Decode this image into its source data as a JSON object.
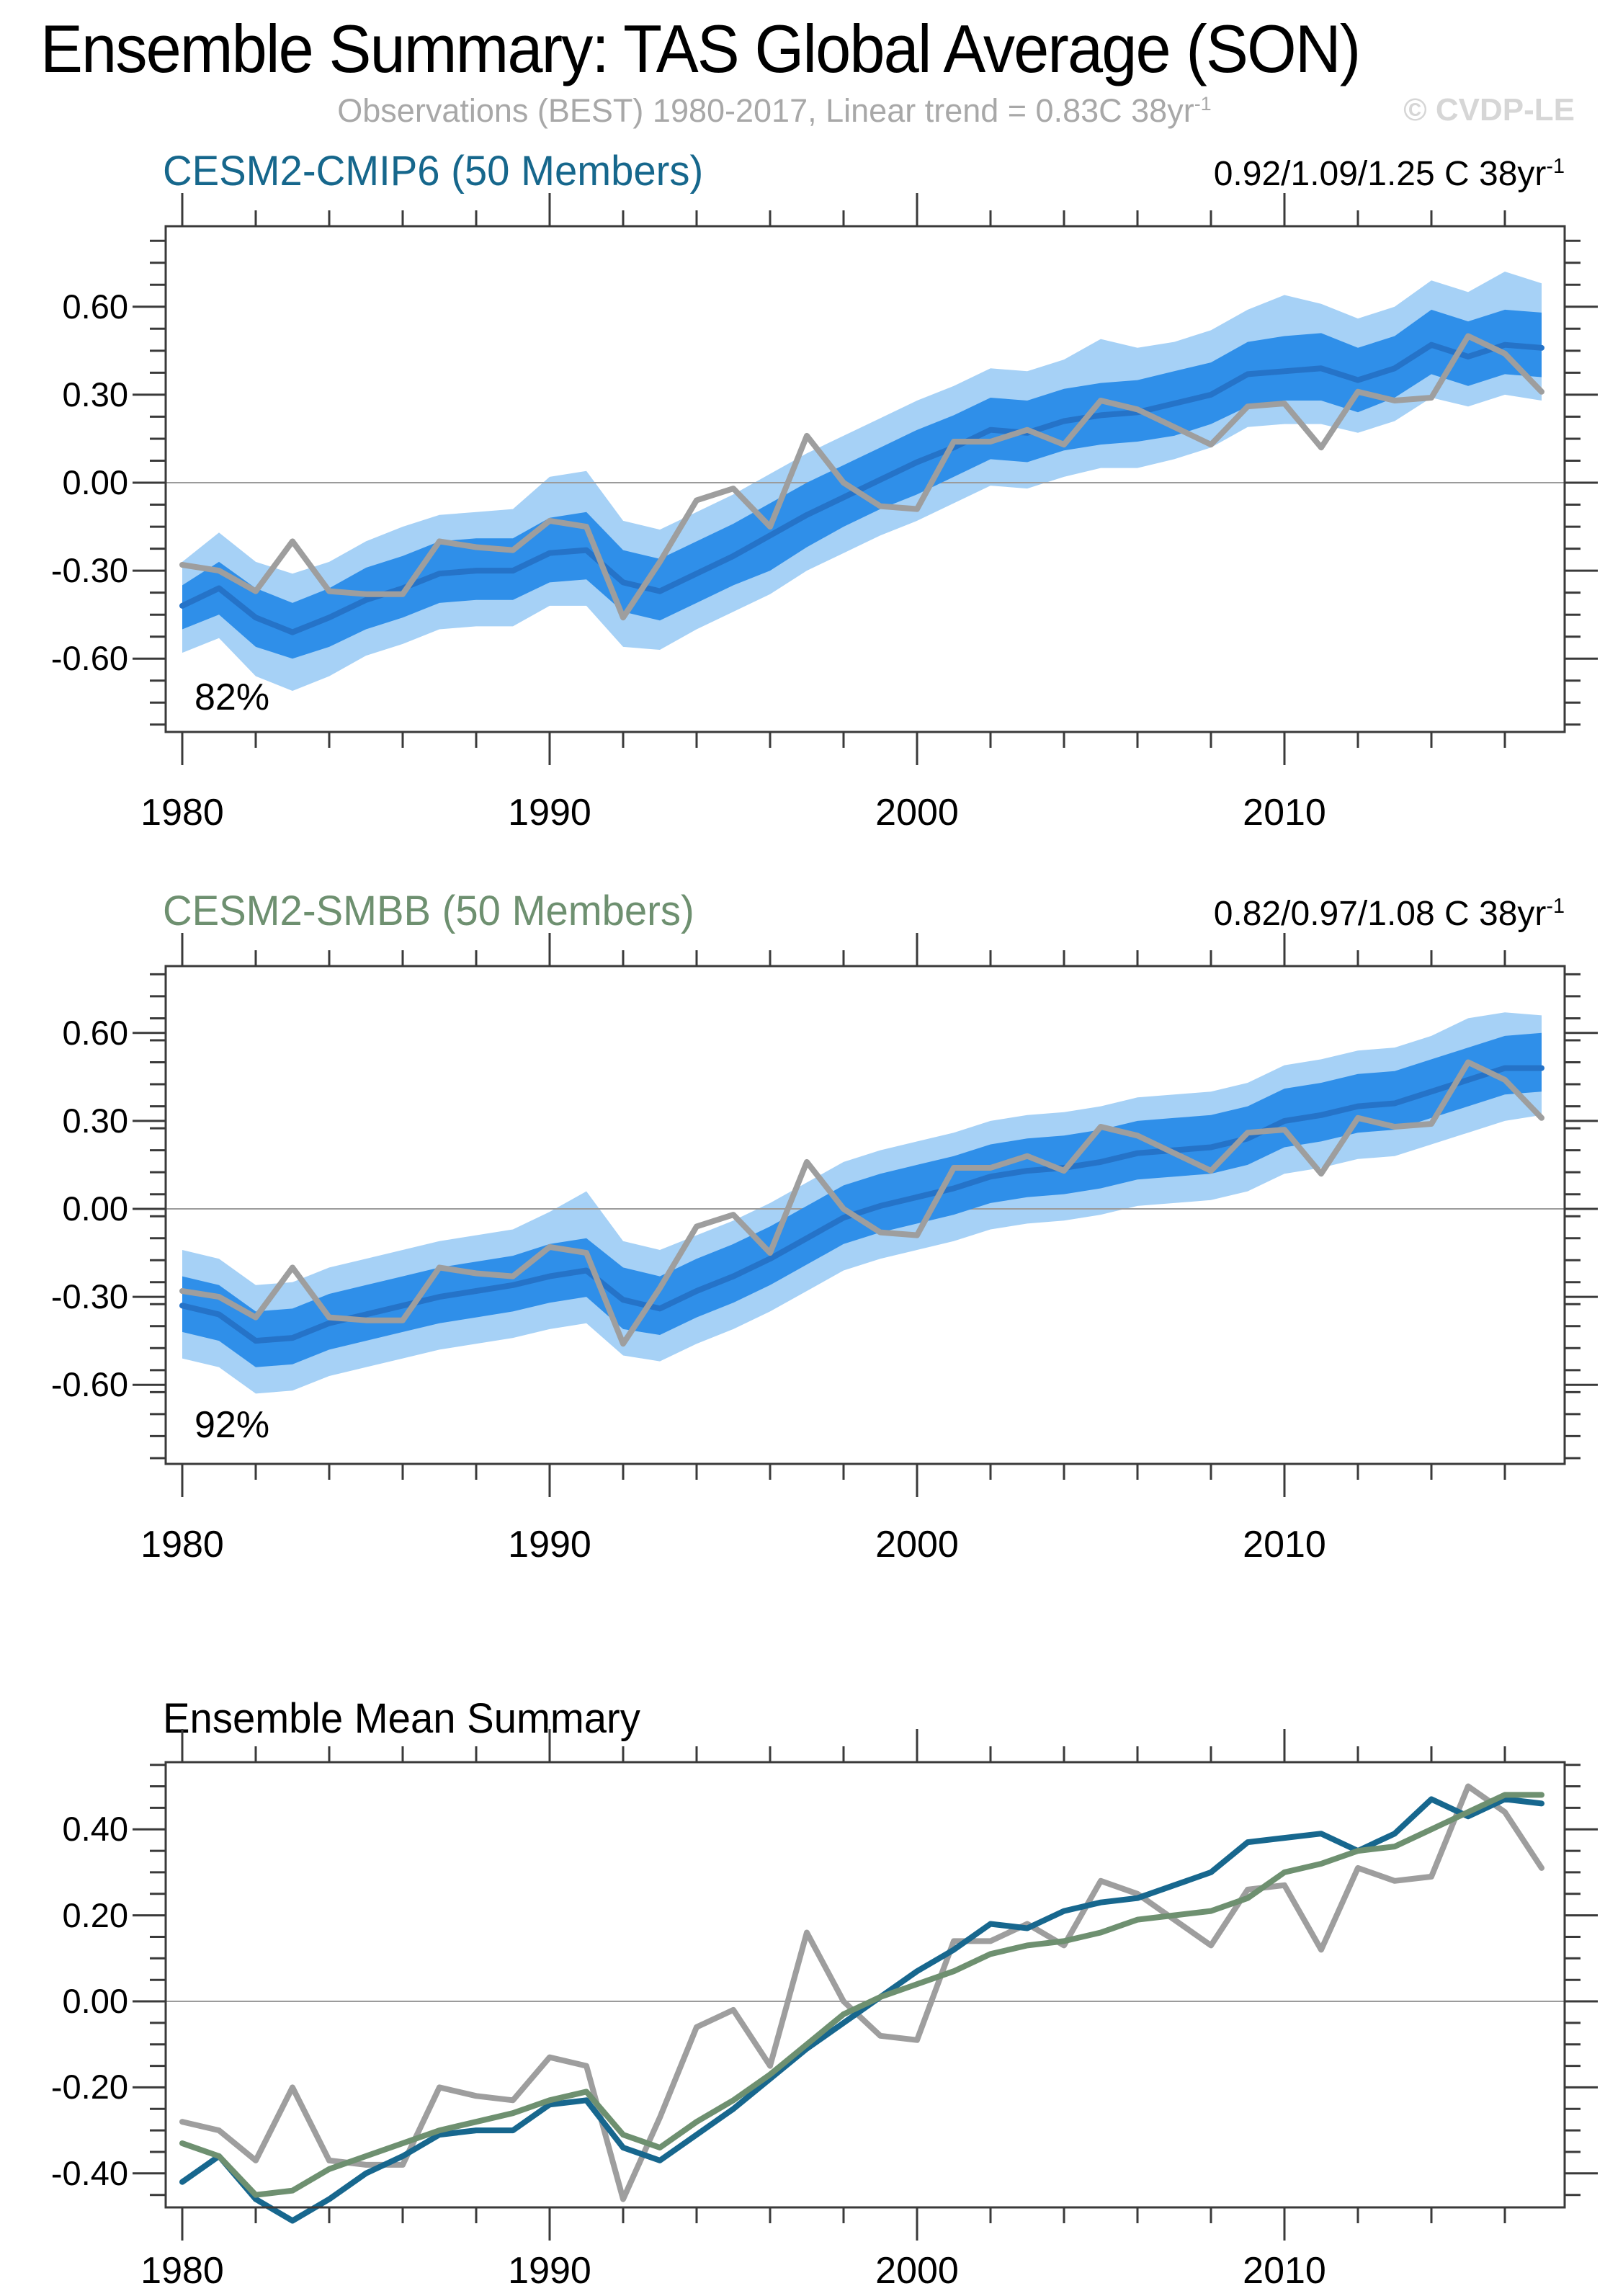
{
  "header": {
    "title": "Ensemble Summary: TAS Global Average (SON)",
    "subtitle": "Observations (BEST) 1980-2017, Linear trend = 0.83C 38yr",
    "subtitle_sup": "-1",
    "watermark": "© CVDP-LE"
  },
  "panels": [
    {
      "key": "cmip6",
      "title": "CESM2-CMIP6 (50 Members)",
      "trend": "0.92/1.09/1.25 C 38yr",
      "trend_sup": "-1",
      "coverage_label": "82%",
      "y_tick_labels": [
        "0.60",
        "0.30",
        "0.00",
        "-0.30",
        "-0.60"
      ],
      "x_tick_labels": [
        "1980",
        "1990",
        "2000",
        "2010"
      ]
    },
    {
      "key": "smbb",
      "title": "CESM2-SMBB (50 Members)",
      "trend": "0.82/0.97/1.08 C 38yr",
      "trend_sup": "-1",
      "coverage_label": "92%",
      "y_tick_labels": [
        "0.60",
        "0.30",
        "0.00",
        "-0.30",
        "-0.60"
      ],
      "x_tick_labels": [
        "1980",
        "1990",
        "2000",
        "2010"
      ]
    },
    {
      "key": "summary",
      "title": "Ensemble Mean Summary",
      "y_tick_labels": [
        "0.40",
        "0.20",
        "0.00",
        "-0.20",
        "-0.40"
      ],
      "x_tick_labels": [
        "1980",
        "1990",
        "2000",
        "2010"
      ]
    }
  ],
  "colors": {
    "band_outer": "#A6D1F6",
    "band_inner": "#2F8FE9",
    "ensemble_mean_line": "#2573C8",
    "observations_line": "#9E9E9E",
    "cmip6_line": "#17678E",
    "smbb_line": "#6E9070",
    "cmip6_title": "#16678C",
    "smbb_title": "#6E9070",
    "subtitle": "#A8A8A8",
    "watermark": "#D6D6D6",
    "axis": "#3A3A3A",
    "gridline": "#9B9B9B"
  },
  "chart_data": [
    {
      "type": "area",
      "title": "CESM2-CMIP6 (50 Members)",
      "xlabel": "",
      "ylabel": "",
      "x": [
        1980,
        1981,
        1982,
        1983,
        1984,
        1985,
        1986,
        1987,
        1988,
        1989,
        1990,
        1991,
        1992,
        1993,
        1994,
        1995,
        1996,
        1997,
        1998,
        1999,
        2000,
        2001,
        2002,
        2003,
        2004,
        2005,
        2006,
        2007,
        2008,
        2009,
        2010,
        2011,
        2012,
        2013,
        2014,
        2015,
        2016,
        2017
      ],
      "xlim": [
        1979.55,
        2017.7
      ],
      "ylim": [
        -0.85,
        0.875
      ],
      "grid_y": [
        0.0
      ],
      "series": [
        {
          "name": "ensemble_min",
          "values": [
            -0.58,
            -0.53,
            -0.66,
            -0.71,
            -0.66,
            -0.59,
            -0.55,
            -0.5,
            -0.49,
            -0.49,
            -0.42,
            -0.42,
            -0.56,
            -0.57,
            -0.5,
            -0.44,
            -0.38,
            -0.3,
            -0.24,
            -0.18,
            -0.13,
            -0.07,
            -0.01,
            -0.02,
            0.02,
            0.05,
            0.05,
            0.08,
            0.12,
            0.19,
            0.2,
            0.2,
            0.17,
            0.21,
            0.29,
            0.26,
            0.3,
            0.28
          ]
        },
        {
          "name": "ensemble_max",
          "values": [
            -0.27,
            -0.17,
            -0.27,
            -0.31,
            -0.27,
            -0.2,
            -0.15,
            -0.11,
            -0.1,
            -0.09,
            0.02,
            0.04,
            -0.13,
            -0.16,
            -0.1,
            -0.04,
            0.03,
            0.1,
            0.16,
            0.22,
            0.28,
            0.33,
            0.39,
            0.38,
            0.42,
            0.49,
            0.46,
            0.48,
            0.52,
            0.59,
            0.64,
            0.61,
            0.56,
            0.6,
            0.69,
            0.65,
            0.72,
            0.68
          ]
        },
        {
          "name": "ensemble_p25",
          "values": [
            -0.5,
            -0.45,
            -0.56,
            -0.6,
            -0.56,
            -0.5,
            -0.46,
            -0.41,
            -0.4,
            -0.4,
            -0.34,
            -0.33,
            -0.44,
            -0.47,
            -0.41,
            -0.35,
            -0.3,
            -0.22,
            -0.15,
            -0.09,
            -0.04,
            0.02,
            0.08,
            0.07,
            0.11,
            0.13,
            0.14,
            0.16,
            0.2,
            0.26,
            0.28,
            0.28,
            0.24,
            0.29,
            0.37,
            0.33,
            0.37,
            0.36
          ]
        },
        {
          "name": "ensemble_p75",
          "values": [
            -0.35,
            -0.27,
            -0.36,
            -0.41,
            -0.36,
            -0.29,
            -0.25,
            -0.2,
            -0.19,
            -0.19,
            -0.12,
            -0.1,
            -0.23,
            -0.26,
            -0.2,
            -0.14,
            -0.07,
            0.0,
            0.06,
            0.12,
            0.18,
            0.23,
            0.29,
            0.28,
            0.32,
            0.34,
            0.35,
            0.38,
            0.41,
            0.48,
            0.5,
            0.51,
            0.46,
            0.5,
            0.59,
            0.55,
            0.59,
            0.58
          ]
        },
        {
          "name": "ensemble_mean",
          "values": [
            -0.42,
            -0.36,
            -0.46,
            -0.51,
            -0.46,
            -0.4,
            -0.36,
            -0.31,
            -0.3,
            -0.3,
            -0.24,
            -0.23,
            -0.34,
            -0.37,
            -0.31,
            -0.25,
            -0.18,
            -0.11,
            -0.05,
            0.01,
            0.07,
            0.12,
            0.18,
            0.17,
            0.21,
            0.23,
            0.24,
            0.27,
            0.3,
            0.37,
            0.38,
            0.39,
            0.35,
            0.39,
            0.47,
            0.43,
            0.47,
            0.46
          ]
        },
        {
          "name": "observations_best",
          "values": [
            -0.28,
            -0.3,
            -0.37,
            -0.2,
            -0.37,
            -0.38,
            -0.38,
            -0.2,
            -0.22,
            -0.23,
            -0.13,
            -0.15,
            -0.46,
            -0.27,
            -0.06,
            -0.02,
            -0.15,
            0.16,
            0.0,
            -0.08,
            -0.09,
            0.14,
            0.14,
            0.18,
            0.13,
            0.28,
            0.25,
            0.19,
            0.13,
            0.26,
            0.27,
            0.12,
            0.31,
            0.28,
            0.29,
            0.5,
            0.44,
            0.31
          ]
        }
      ],
      "annotations": [
        "82%"
      ],
      "legend": "none"
    },
    {
      "type": "area",
      "title": "CESM2-SMBB (50 Members)",
      "xlabel": "",
      "ylabel": "",
      "x": [
        1980,
        1981,
        1982,
        1983,
        1984,
        1985,
        1986,
        1987,
        1988,
        1989,
        1990,
        1991,
        1992,
        1993,
        1994,
        1995,
        1996,
        1997,
        1998,
        1999,
        2000,
        2001,
        2002,
        2003,
        2004,
        2005,
        2006,
        2007,
        2008,
        2009,
        2010,
        2011,
        2012,
        2013,
        2014,
        2015,
        2016,
        2017
      ],
      "xlim": [
        1979.55,
        2017.7
      ],
      "ylim": [
        -0.87,
        0.83
      ],
      "grid_y": [
        0.0
      ],
      "series": [
        {
          "name": "ensemble_min",
          "values": [
            -0.51,
            -0.54,
            -0.63,
            -0.62,
            -0.57,
            -0.54,
            -0.51,
            -0.48,
            -0.46,
            -0.44,
            -0.41,
            -0.39,
            -0.5,
            -0.52,
            -0.46,
            -0.41,
            -0.35,
            -0.28,
            -0.21,
            -0.17,
            -0.14,
            -0.11,
            -0.07,
            -0.05,
            -0.04,
            -0.02,
            0.01,
            0.02,
            0.03,
            0.06,
            0.12,
            0.14,
            0.17,
            0.18,
            0.22,
            0.26,
            0.3,
            0.32
          ]
        },
        {
          "name": "ensemble_max",
          "values": [
            -0.14,
            -0.17,
            -0.26,
            -0.25,
            -0.2,
            -0.17,
            -0.14,
            -0.11,
            -0.09,
            -0.07,
            -0.01,
            0.06,
            -0.11,
            -0.14,
            -0.09,
            -0.04,
            0.02,
            0.09,
            0.16,
            0.2,
            0.23,
            0.26,
            0.3,
            0.32,
            0.33,
            0.35,
            0.38,
            0.39,
            0.4,
            0.43,
            0.49,
            0.51,
            0.54,
            0.55,
            0.59,
            0.65,
            0.67,
            0.66
          ]
        },
        {
          "name": "ensemble_p25",
          "values": [
            -0.42,
            -0.45,
            -0.54,
            -0.53,
            -0.48,
            -0.45,
            -0.42,
            -0.39,
            -0.37,
            -0.35,
            -0.32,
            -0.3,
            -0.41,
            -0.43,
            -0.37,
            -0.32,
            -0.26,
            -0.19,
            -0.12,
            -0.08,
            -0.05,
            -0.02,
            0.02,
            0.04,
            0.05,
            0.07,
            0.1,
            0.11,
            0.12,
            0.15,
            0.21,
            0.23,
            0.26,
            0.27,
            0.31,
            0.35,
            0.39,
            0.4
          ]
        },
        {
          "name": "ensemble_p75",
          "values": [
            -0.23,
            -0.26,
            -0.35,
            -0.34,
            -0.29,
            -0.26,
            -0.23,
            -0.2,
            -0.18,
            -0.16,
            -0.12,
            -0.1,
            -0.2,
            -0.23,
            -0.17,
            -0.12,
            -0.06,
            0.01,
            0.08,
            0.12,
            0.15,
            0.18,
            0.22,
            0.24,
            0.25,
            0.27,
            0.3,
            0.31,
            0.32,
            0.35,
            0.41,
            0.43,
            0.46,
            0.47,
            0.51,
            0.55,
            0.59,
            0.6
          ]
        },
        {
          "name": "ensemble_mean",
          "values": [
            -0.33,
            -0.36,
            -0.45,
            -0.44,
            -0.39,
            -0.36,
            -0.33,
            -0.3,
            -0.28,
            -0.26,
            -0.23,
            -0.21,
            -0.31,
            -0.34,
            -0.28,
            -0.23,
            -0.17,
            -0.1,
            -0.03,
            0.01,
            0.04,
            0.07,
            0.11,
            0.13,
            0.14,
            0.16,
            0.19,
            0.2,
            0.21,
            0.24,
            0.3,
            0.32,
            0.35,
            0.36,
            0.4,
            0.44,
            0.48,
            0.48
          ]
        },
        {
          "name": "observations_best",
          "values": [
            -0.28,
            -0.3,
            -0.37,
            -0.2,
            -0.37,
            -0.38,
            -0.38,
            -0.2,
            -0.22,
            -0.23,
            -0.13,
            -0.15,
            -0.46,
            -0.27,
            -0.06,
            -0.02,
            -0.15,
            0.16,
            0.0,
            -0.08,
            -0.09,
            0.14,
            0.14,
            0.18,
            0.13,
            0.28,
            0.25,
            0.19,
            0.13,
            0.26,
            0.27,
            0.12,
            0.31,
            0.28,
            0.29,
            0.5,
            0.44,
            0.31
          ]
        }
      ],
      "annotations": [
        "92%"
      ],
      "legend": "none"
    },
    {
      "type": "line",
      "title": "Ensemble Mean Summary",
      "xlabel": "",
      "ylabel": "",
      "x": [
        1980,
        1981,
        1982,
        1983,
        1984,
        1985,
        1986,
        1987,
        1988,
        1989,
        1990,
        1991,
        1992,
        1993,
        1994,
        1995,
        1996,
        1997,
        1998,
        1999,
        2000,
        2001,
        2002,
        2003,
        2004,
        2005,
        2006,
        2007,
        2008,
        2009,
        2010,
        2011,
        2012,
        2013,
        2014,
        2015,
        2016,
        2017
      ],
      "xlim": [
        1979.55,
        2017.7
      ],
      "ylim": [
        -0.48,
        0.556
      ],
      "grid_y": [
        0.0
      ],
      "series": [
        {
          "name": "observations_best",
          "values": [
            -0.28,
            -0.3,
            -0.37,
            -0.2,
            -0.37,
            -0.38,
            -0.38,
            -0.2,
            -0.22,
            -0.23,
            -0.13,
            -0.15,
            -0.46,
            -0.27,
            -0.06,
            -0.02,
            -0.15,
            0.16,
            0.0,
            -0.08,
            -0.09,
            0.14,
            0.14,
            0.18,
            0.13,
            0.28,
            0.25,
            0.19,
            0.13,
            0.26,
            0.27,
            0.12,
            0.31,
            0.28,
            0.29,
            0.5,
            0.44,
            0.31
          ]
        },
        {
          "name": "cesm2_cmip6_mean",
          "values": [
            -0.42,
            -0.36,
            -0.46,
            -0.51,
            -0.46,
            -0.4,
            -0.36,
            -0.31,
            -0.3,
            -0.3,
            -0.24,
            -0.23,
            -0.34,
            -0.37,
            -0.31,
            -0.25,
            -0.18,
            -0.11,
            -0.05,
            0.01,
            0.07,
            0.12,
            0.18,
            0.17,
            0.21,
            0.23,
            0.24,
            0.27,
            0.3,
            0.37,
            0.38,
            0.39,
            0.35,
            0.39,
            0.47,
            0.43,
            0.47,
            0.46
          ]
        },
        {
          "name": "cesm2_smbb_mean",
          "values": [
            -0.33,
            -0.36,
            -0.45,
            -0.44,
            -0.39,
            -0.36,
            -0.33,
            -0.3,
            -0.28,
            -0.26,
            -0.23,
            -0.21,
            -0.31,
            -0.34,
            -0.28,
            -0.23,
            -0.17,
            -0.1,
            -0.03,
            0.01,
            0.04,
            0.07,
            0.11,
            0.13,
            0.14,
            0.16,
            0.19,
            0.2,
            0.21,
            0.24,
            0.3,
            0.32,
            0.35,
            0.36,
            0.4,
            0.44,
            0.48,
            0.48
          ]
        }
      ],
      "legend": "none"
    }
  ]
}
